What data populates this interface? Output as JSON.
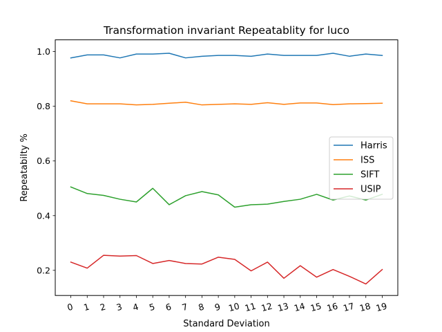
{
  "chart_data": {
    "type": "line",
    "title": "Transformation invariant Repeatablity for luco",
    "xlabel": "Standard Deviation",
    "ylabel": "Repeatabilty %",
    "x": [
      0,
      1,
      2,
      3,
      4,
      5,
      6,
      7,
      8,
      9,
      10,
      11,
      12,
      13,
      14,
      15,
      16,
      17,
      18,
      19
    ],
    "xtick_labels": [
      "0",
      "1",
      "2",
      "3",
      "4",
      "5",
      "6",
      "7",
      "8",
      "9",
      "10",
      "11",
      "12",
      "13",
      "14",
      "15",
      "16",
      "17",
      "18",
      "19"
    ],
    "yticks": [
      0.2,
      0.4,
      0.6,
      0.8,
      1.0
    ],
    "ytick_labels": [
      "0.2",
      "0.4",
      "0.6",
      "0.8",
      "1.0"
    ],
    "xlim": [
      -0.95,
      19.95
    ],
    "ylim": [
      0.108,
      1.043
    ],
    "grid": false,
    "legend_position": "center-right",
    "series": [
      {
        "name": "Harris",
        "color": "#1f77b4",
        "values": [
          0.977,
          0.988,
          0.988,
          0.977,
          0.991,
          0.991,
          0.994,
          0.977,
          0.983,
          0.986,
          0.986,
          0.983,
          0.991,
          0.986,
          0.986,
          0.986,
          0.994,
          0.983,
          0.991,
          0.986
        ]
      },
      {
        "name": "ISS",
        "color": "#ff7f0e",
        "values": [
          0.82,
          0.809,
          0.809,
          0.809,
          0.805,
          0.807,
          0.811,
          0.815,
          0.805,
          0.807,
          0.809,
          0.807,
          0.813,
          0.807,
          0.812,
          0.812,
          0.806,
          0.809,
          0.81,
          0.811
        ]
      },
      {
        "name": "SIFT",
        "color": "#2ca02c",
        "values": [
          0.505,
          0.481,
          0.474,
          0.46,
          0.45,
          0.5,
          0.44,
          0.473,
          0.488,
          0.476,
          0.431,
          0.44,
          0.442,
          0.452,
          0.46,
          0.478,
          0.457,
          0.472,
          0.457,
          0.478
        ]
      },
      {
        "name": "USIP",
        "color": "#d62728",
        "values": [
          0.23,
          0.208,
          0.255,
          0.252,
          0.254,
          0.225,
          0.236,
          0.225,
          0.223,
          0.248,
          0.24,
          0.198,
          0.23,
          0.171,
          0.217,
          0.175,
          0.203,
          0.178,
          0.15,
          0.203
        ]
      }
    ]
  }
}
